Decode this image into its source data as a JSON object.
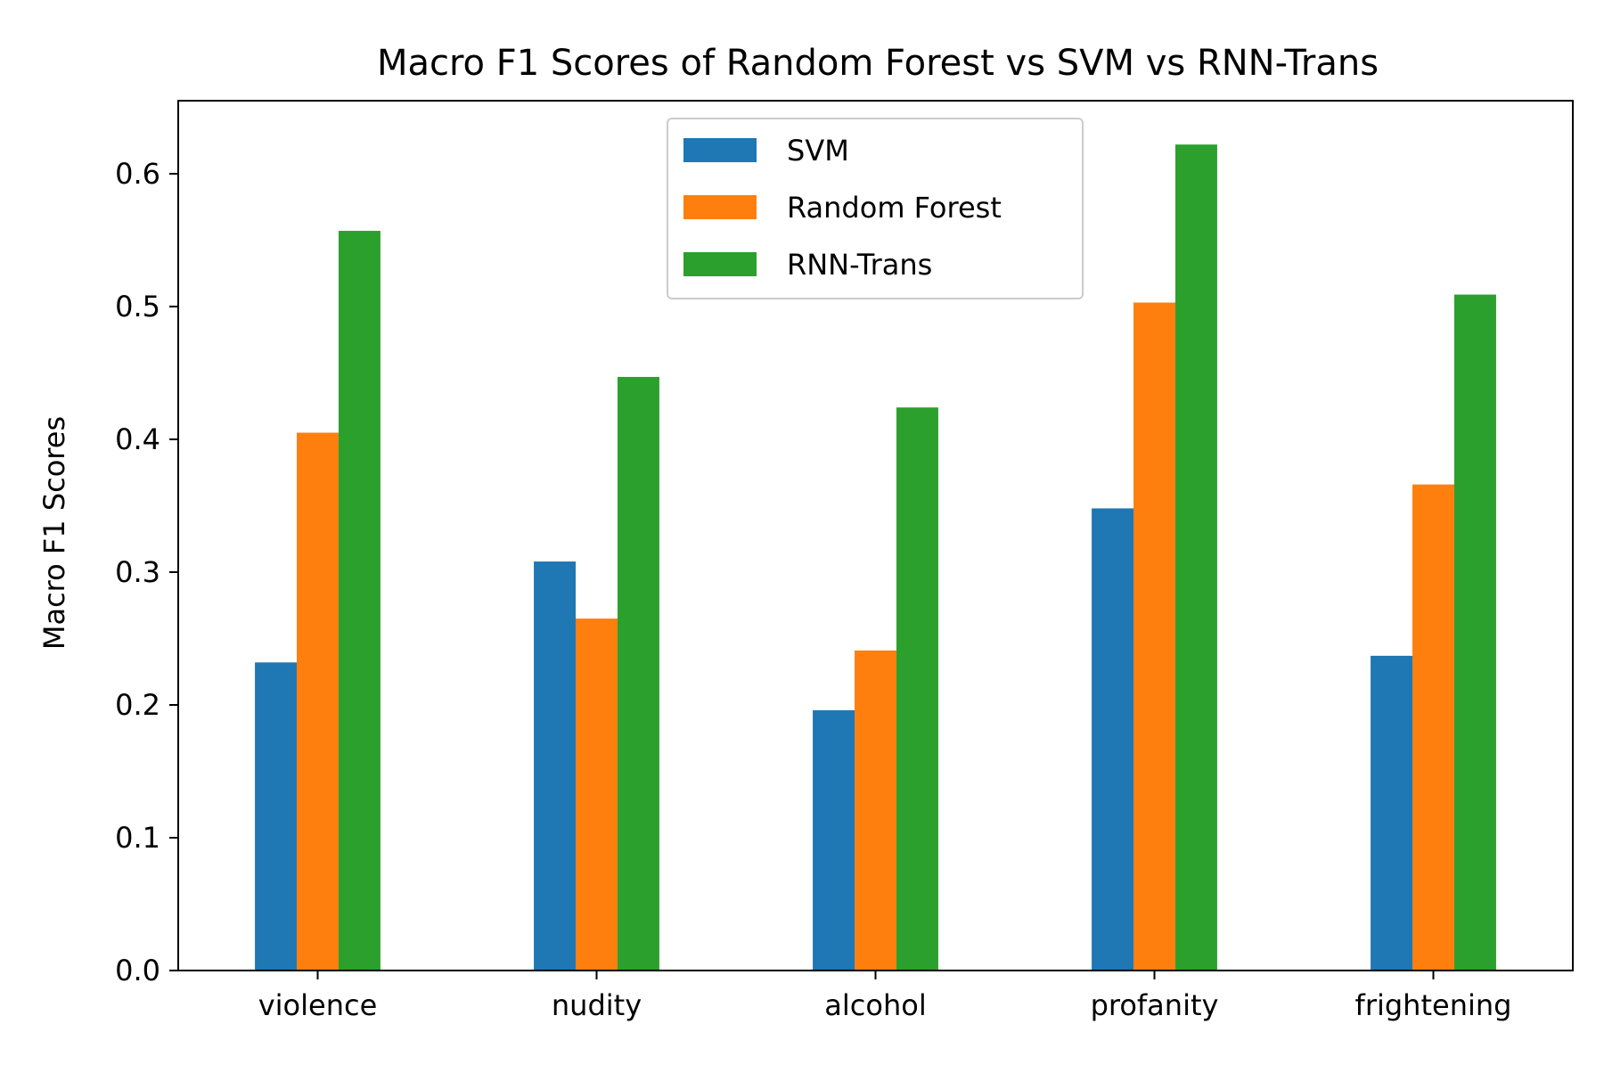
{
  "chart_data": {
    "type": "bar",
    "title": "Macro F1 Scores of Random Forest vs SVM vs RNN-Trans",
    "xlabel": "",
    "ylabel": "Macro F1 Scores",
    "ylim": [
      0,
      0.655
    ],
    "yticks": [
      0.0,
      0.1,
      0.2,
      0.3,
      0.4,
      0.5,
      0.6
    ],
    "ytick_labels": [
      "0.0",
      "0.1",
      "0.2",
      "0.3",
      "0.4",
      "0.5",
      "0.6"
    ],
    "grid": false,
    "legend_position": "top-center",
    "categories": [
      "violence",
      "nudity",
      "alcohol",
      "profanity",
      "frightening"
    ],
    "series": [
      {
        "name": "SVM",
        "color": "#1f77b4",
        "values": [
          0.232,
          0.308,
          0.196,
          0.348,
          0.237
        ]
      },
      {
        "name": "Random Forest",
        "color": "#ff7f0e",
        "values": [
          0.405,
          0.265,
          0.241,
          0.503,
          0.366
        ]
      },
      {
        "name": "RNN-Trans",
        "color": "#2ca02c",
        "values": [
          0.557,
          0.447,
          0.424,
          0.622,
          0.509
        ]
      }
    ]
  }
}
